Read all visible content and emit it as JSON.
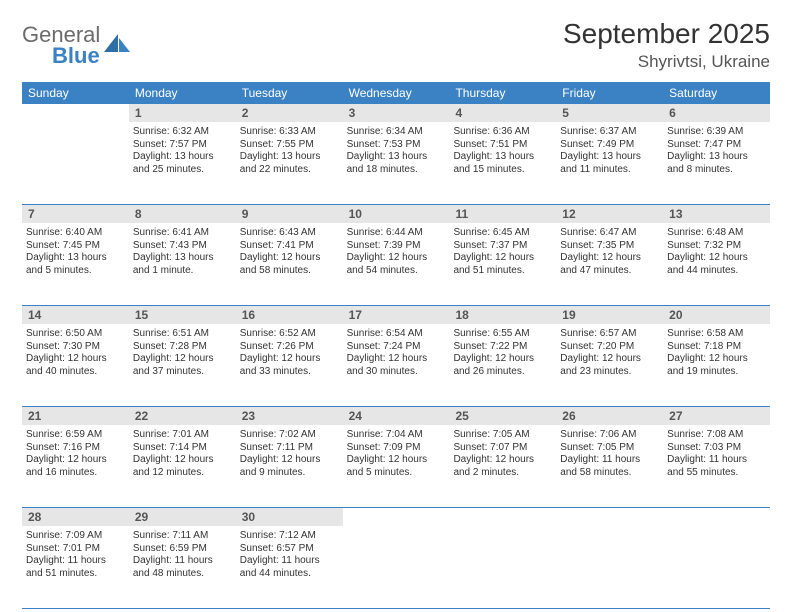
{
  "logo": {
    "text_top": "General",
    "text_bottom": "Blue"
  },
  "title": "September 2025",
  "location": "Shyrivtsi, Ukraine",
  "colors": {
    "header_bg": "#3b82c4",
    "header_text": "#ffffff",
    "daynum_bg": "#e6e6e6",
    "border": "#3b82c4",
    "text": "#333333",
    "logo_gray": "#6b6b6b",
    "logo_blue": "#3b82c4"
  },
  "days_of_week": [
    "Sunday",
    "Monday",
    "Tuesday",
    "Wednesday",
    "Thursday",
    "Friday",
    "Saturday"
  ],
  "weeks": [
    [
      {
        "n": "",
        "sunrise": "",
        "sunset": "",
        "daylight": ""
      },
      {
        "n": "1",
        "sunrise": "Sunrise: 6:32 AM",
        "sunset": "Sunset: 7:57 PM",
        "daylight": "Daylight: 13 hours and 25 minutes."
      },
      {
        "n": "2",
        "sunrise": "Sunrise: 6:33 AM",
        "sunset": "Sunset: 7:55 PM",
        "daylight": "Daylight: 13 hours and 22 minutes."
      },
      {
        "n": "3",
        "sunrise": "Sunrise: 6:34 AM",
        "sunset": "Sunset: 7:53 PM",
        "daylight": "Daylight: 13 hours and 18 minutes."
      },
      {
        "n": "4",
        "sunrise": "Sunrise: 6:36 AM",
        "sunset": "Sunset: 7:51 PM",
        "daylight": "Daylight: 13 hours and 15 minutes."
      },
      {
        "n": "5",
        "sunrise": "Sunrise: 6:37 AM",
        "sunset": "Sunset: 7:49 PM",
        "daylight": "Daylight: 13 hours and 11 minutes."
      },
      {
        "n": "6",
        "sunrise": "Sunrise: 6:39 AM",
        "sunset": "Sunset: 7:47 PM",
        "daylight": "Daylight: 13 hours and 8 minutes."
      }
    ],
    [
      {
        "n": "7",
        "sunrise": "Sunrise: 6:40 AM",
        "sunset": "Sunset: 7:45 PM",
        "daylight": "Daylight: 13 hours and 5 minutes."
      },
      {
        "n": "8",
        "sunrise": "Sunrise: 6:41 AM",
        "sunset": "Sunset: 7:43 PM",
        "daylight": "Daylight: 13 hours and 1 minute."
      },
      {
        "n": "9",
        "sunrise": "Sunrise: 6:43 AM",
        "sunset": "Sunset: 7:41 PM",
        "daylight": "Daylight: 12 hours and 58 minutes."
      },
      {
        "n": "10",
        "sunrise": "Sunrise: 6:44 AM",
        "sunset": "Sunset: 7:39 PM",
        "daylight": "Daylight: 12 hours and 54 minutes."
      },
      {
        "n": "11",
        "sunrise": "Sunrise: 6:45 AM",
        "sunset": "Sunset: 7:37 PM",
        "daylight": "Daylight: 12 hours and 51 minutes."
      },
      {
        "n": "12",
        "sunrise": "Sunrise: 6:47 AM",
        "sunset": "Sunset: 7:35 PM",
        "daylight": "Daylight: 12 hours and 47 minutes."
      },
      {
        "n": "13",
        "sunrise": "Sunrise: 6:48 AM",
        "sunset": "Sunset: 7:32 PM",
        "daylight": "Daylight: 12 hours and 44 minutes."
      }
    ],
    [
      {
        "n": "14",
        "sunrise": "Sunrise: 6:50 AM",
        "sunset": "Sunset: 7:30 PM",
        "daylight": "Daylight: 12 hours and 40 minutes."
      },
      {
        "n": "15",
        "sunrise": "Sunrise: 6:51 AM",
        "sunset": "Sunset: 7:28 PM",
        "daylight": "Daylight: 12 hours and 37 minutes."
      },
      {
        "n": "16",
        "sunrise": "Sunrise: 6:52 AM",
        "sunset": "Sunset: 7:26 PM",
        "daylight": "Daylight: 12 hours and 33 minutes."
      },
      {
        "n": "17",
        "sunrise": "Sunrise: 6:54 AM",
        "sunset": "Sunset: 7:24 PM",
        "daylight": "Daylight: 12 hours and 30 minutes."
      },
      {
        "n": "18",
        "sunrise": "Sunrise: 6:55 AM",
        "sunset": "Sunset: 7:22 PM",
        "daylight": "Daylight: 12 hours and 26 minutes."
      },
      {
        "n": "19",
        "sunrise": "Sunrise: 6:57 AM",
        "sunset": "Sunset: 7:20 PM",
        "daylight": "Daylight: 12 hours and 23 minutes."
      },
      {
        "n": "20",
        "sunrise": "Sunrise: 6:58 AM",
        "sunset": "Sunset: 7:18 PM",
        "daylight": "Daylight: 12 hours and 19 minutes."
      }
    ],
    [
      {
        "n": "21",
        "sunrise": "Sunrise: 6:59 AM",
        "sunset": "Sunset: 7:16 PM",
        "daylight": "Daylight: 12 hours and 16 minutes."
      },
      {
        "n": "22",
        "sunrise": "Sunrise: 7:01 AM",
        "sunset": "Sunset: 7:14 PM",
        "daylight": "Daylight: 12 hours and 12 minutes."
      },
      {
        "n": "23",
        "sunrise": "Sunrise: 7:02 AM",
        "sunset": "Sunset: 7:11 PM",
        "daylight": "Daylight: 12 hours and 9 minutes."
      },
      {
        "n": "24",
        "sunrise": "Sunrise: 7:04 AM",
        "sunset": "Sunset: 7:09 PM",
        "daylight": "Daylight: 12 hours and 5 minutes."
      },
      {
        "n": "25",
        "sunrise": "Sunrise: 7:05 AM",
        "sunset": "Sunset: 7:07 PM",
        "daylight": "Daylight: 12 hours and 2 minutes."
      },
      {
        "n": "26",
        "sunrise": "Sunrise: 7:06 AM",
        "sunset": "Sunset: 7:05 PM",
        "daylight": "Daylight: 11 hours and 58 minutes."
      },
      {
        "n": "27",
        "sunrise": "Sunrise: 7:08 AM",
        "sunset": "Sunset: 7:03 PM",
        "daylight": "Daylight: 11 hours and 55 minutes."
      }
    ],
    [
      {
        "n": "28",
        "sunrise": "Sunrise: 7:09 AM",
        "sunset": "Sunset: 7:01 PM",
        "daylight": "Daylight: 11 hours and 51 minutes."
      },
      {
        "n": "29",
        "sunrise": "Sunrise: 7:11 AM",
        "sunset": "Sunset: 6:59 PM",
        "daylight": "Daylight: 11 hours and 48 minutes."
      },
      {
        "n": "30",
        "sunrise": "Sunrise: 7:12 AM",
        "sunset": "Sunset: 6:57 PM",
        "daylight": "Daylight: 11 hours and 44 minutes."
      },
      {
        "n": "",
        "sunrise": "",
        "sunset": "",
        "daylight": ""
      },
      {
        "n": "",
        "sunrise": "",
        "sunset": "",
        "daylight": ""
      },
      {
        "n": "",
        "sunrise": "",
        "sunset": "",
        "daylight": ""
      },
      {
        "n": "",
        "sunrise": "",
        "sunset": "",
        "daylight": ""
      }
    ]
  ]
}
